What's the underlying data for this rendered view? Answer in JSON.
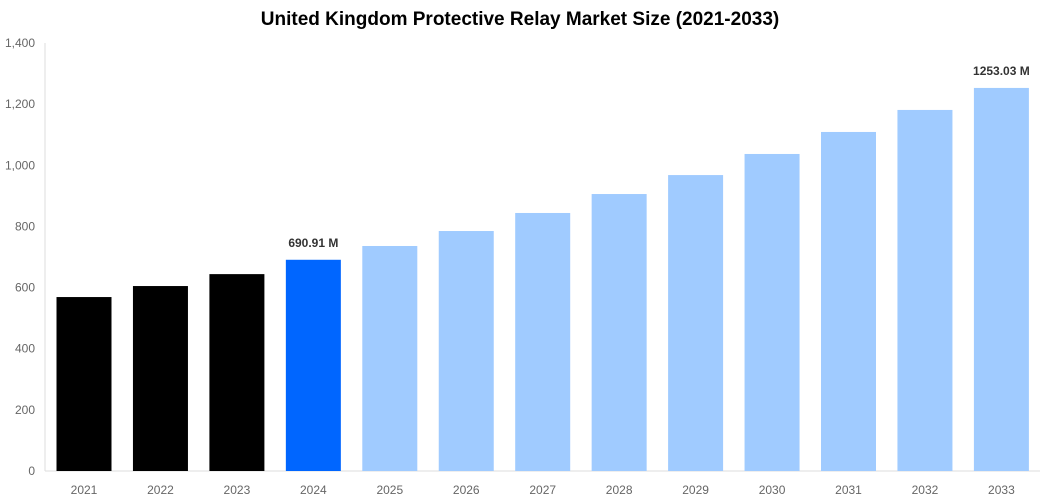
{
  "chart_data": {
    "type": "bar",
    "title": "United Kingdom Protective Relay Market Size (2021-2033)",
    "xlabel": "",
    "ylabel": "",
    "categories": [
      "2021",
      "2022",
      "2023",
      "2024",
      "2025",
      "2026",
      "2027",
      "2028",
      "2029",
      "2030",
      "2031",
      "2032",
      "2033"
    ],
    "values": [
      569,
      605,
      644,
      690.91,
      736,
      785,
      844,
      906,
      968,
      1037,
      1109,
      1181,
      1253.03
    ],
    "bar_colors": [
      "#000000",
      "#000000",
      "#000000",
      "#0066ff",
      "#a0cbff",
      "#a0cbff",
      "#a0cbff",
      "#a0cbff",
      "#a0cbff",
      "#a0cbff",
      "#a0cbff",
      "#a0cbff",
      "#a0cbff"
    ],
    "data_labels": {
      "3": "690.91 M",
      "12": "1253.03 M"
    },
    "ylim": [
      0,
      1400
    ],
    "yticks": [
      "0",
      "200",
      "400",
      "600",
      "800",
      "1,000",
      "1,200",
      "1,400"
    ],
    "grid": false,
    "legend": "none"
  }
}
